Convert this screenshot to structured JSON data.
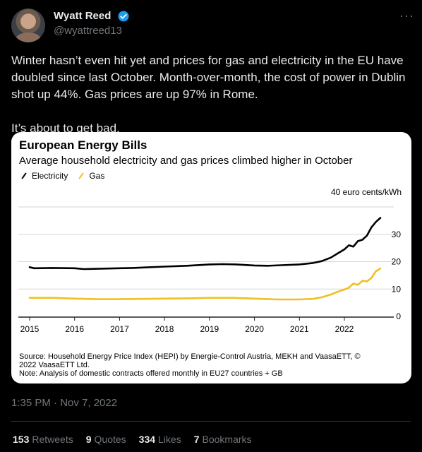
{
  "author": {
    "name": "Wyatt Reed",
    "handle": "@wyattreed13",
    "verified": true,
    "verified_color": "#1d9bf0"
  },
  "tweet": {
    "paragraphs": [
      "Winter hasn’t even hit yet and prices for gas and electricity in the EU have doubled since last October. Month-over-month, the cost of power in Dublin shot up 44%. Gas prices are up 97% in Rome.",
      "It’s about to get bad."
    ],
    "timestamp": "1:35 PM · Nov 7, 2022"
  },
  "more_icon": "more-horizontal-icon",
  "card": {
    "title": "European Energy Bills",
    "subtitle": "Average household electricity and gas prices climbed higher in October",
    "legend": [
      {
        "label": "Electricity",
        "color": "#000000"
      },
      {
        "label": "Gas",
        "color": "#f0c020"
      }
    ],
    "unit": "40 euro cents/kWh",
    "source_lines": [
      "Source: Household Energy Price Index (HEPI) by Energie-Control Austria, MEKH and VaasaETT, ©",
      "2022 VaasaETT Ltd.",
      "Note: Analysis of domestic contracts offered monthly in EU27 countries + GB"
    ]
  },
  "chart_data": {
    "type": "line",
    "title": "European Energy Bills",
    "subtitle": "Average household electricity and gas prices climbed higher in October",
    "ylabel": "euro cents/kWh",
    "xticks": [
      "2015",
      "2016",
      "2017",
      "2018",
      "2019",
      "2020",
      "2021",
      "2022"
    ],
    "yticks": [
      "40 euro cents/kWh",
      "30",
      "20",
      "10",
      "0"
    ],
    "xlim": [
      2015,
      2023
    ],
    "ylim": [
      0,
      40
    ],
    "grid": true,
    "legend_position": "top-left",
    "series": [
      {
        "name": "Electricity",
        "color": "#000000",
        "x": [
          2015.0,
          2015.1,
          2015.5,
          2016.0,
          2016.2,
          2016.5,
          2017.0,
          2017.3,
          2017.6,
          2018.0,
          2018.5,
          2019.0,
          2019.3,
          2019.6,
          2020.0,
          2020.3,
          2020.6,
          2021.0,
          2021.3,
          2021.5,
          2021.7,
          2021.85,
          2022.0,
          2022.1,
          2022.2,
          2022.3,
          2022.4,
          2022.5,
          2022.6,
          2022.7,
          2022.8
        ],
        "y": [
          18.0,
          17.6,
          17.7,
          17.6,
          17.3,
          17.4,
          17.6,
          17.7,
          17.9,
          18.2,
          18.5,
          19.0,
          19.1,
          19.0,
          18.6,
          18.5,
          18.7,
          19.0,
          19.5,
          20.2,
          21.5,
          23.0,
          24.5,
          26.0,
          25.5,
          27.5,
          28.0,
          29.5,
          32.5,
          34.5,
          36.0
        ]
      },
      {
        "name": "Gas",
        "color": "#f0c020",
        "x": [
          2015.0,
          2015.5,
          2016.0,
          2016.5,
          2017.0,
          2017.5,
          2018.0,
          2018.5,
          2019.0,
          2019.5,
          2020.0,
          2020.5,
          2021.0,
          2021.3,
          2021.5,
          2021.7,
          2021.85,
          2022.0,
          2022.1,
          2022.2,
          2022.3,
          2022.4,
          2022.5,
          2022.6,
          2022.7,
          2022.8
        ],
        "y": [
          6.8,
          6.8,
          6.5,
          6.3,
          6.3,
          6.4,
          6.5,
          6.6,
          6.8,
          6.8,
          6.5,
          6.2,
          6.2,
          6.4,
          7.0,
          8.0,
          9.0,
          9.8,
          10.5,
          12.0,
          11.5,
          13.0,
          12.8,
          14.0,
          16.5,
          17.5
        ]
      }
    ]
  },
  "engagement": {
    "retweets_count": "153",
    "retweets_label": "Retweets",
    "quotes_count": "9",
    "quotes_label": "Quotes",
    "likes_count": "334",
    "likes_label": "Likes",
    "bookmarks_count": "7",
    "bookmarks_label": "Bookmarks"
  }
}
